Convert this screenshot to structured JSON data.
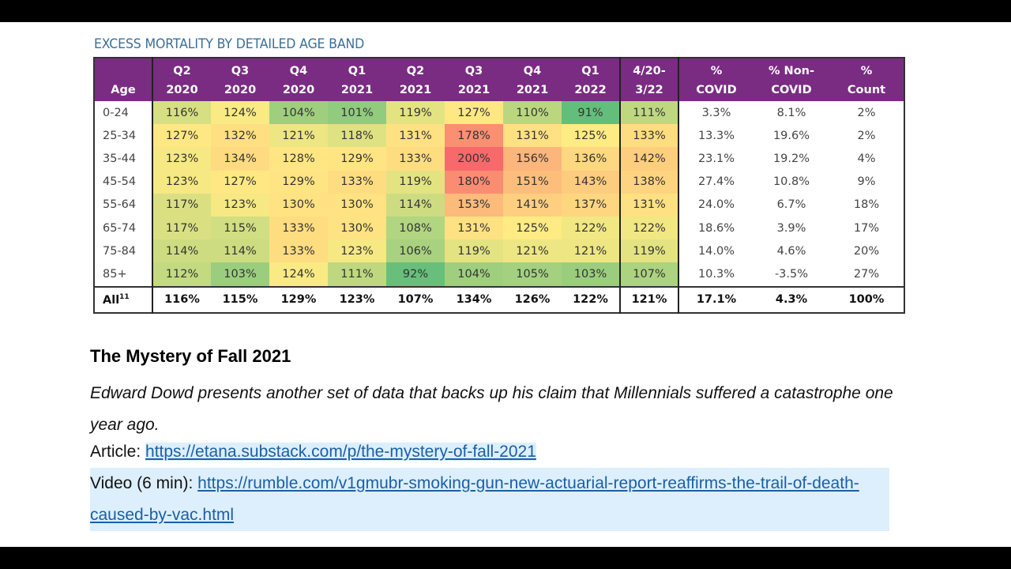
{
  "table": {
    "title": "EXCESS MORTALITY BY DETAILED AGE BAND",
    "headers": [
      [
        "",
        "Age"
      ],
      [
        "Q2",
        "2020"
      ],
      [
        "Q3",
        "2020"
      ],
      [
        "Q4",
        "2020"
      ],
      [
        "Q1",
        "2021"
      ],
      [
        "Q2",
        "2021"
      ],
      [
        "Q3",
        "2021"
      ],
      [
        "Q4",
        "2021"
      ],
      [
        "Q1",
        "2022"
      ],
      [
        "4/20-",
        "3/22"
      ],
      [
        "%",
        "COVID"
      ],
      [
        "% Non-",
        "COVID"
      ],
      [
        "%",
        "Count"
      ]
    ],
    "rows": [
      {
        "age": "0-24",
        "values": [
          116,
          124,
          104,
          101,
          119,
          127,
          110,
          91,
          111
        ],
        "covid": "3.3%",
        "non_covid": "8.1%",
        "count": "2%"
      },
      {
        "age": "25-34",
        "values": [
          127,
          132,
          121,
          118,
          131,
          178,
          131,
          125,
          133
        ],
        "covid": "13.3%",
        "non_covid": "19.6%",
        "count": "2%"
      },
      {
        "age": "35-44",
        "values": [
          123,
          134,
          128,
          129,
          133,
          200,
          156,
          136,
          142
        ],
        "covid": "23.1%",
        "non_covid": "19.2%",
        "count": "4%"
      },
      {
        "age": "45-54",
        "values": [
          123,
          127,
          129,
          133,
          119,
          180,
          151,
          143,
          138
        ],
        "covid": "27.4%",
        "non_covid": "10.8%",
        "count": "9%"
      },
      {
        "age": "55-64",
        "values": [
          117,
          123,
          130,
          130,
          114,
          153,
          141,
          137,
          131
        ],
        "covid": "24.0%",
        "non_covid": "6.7%",
        "count": "18%"
      },
      {
        "age": "65-74",
        "values": [
          117,
          115,
          133,
          130,
          108,
          131,
          125,
          122,
          122
        ],
        "covid": "18.6%",
        "non_covid": "3.9%",
        "count": "17%"
      },
      {
        "age": "75-84",
        "values": [
          114,
          114,
          133,
          123,
          106,
          119,
          121,
          121,
          119
        ],
        "covid": "14.0%",
        "non_covid": "4.6%",
        "count": "20%"
      },
      {
        "age": "85+",
        "values": [
          112,
          103,
          124,
          111,
          92,
          104,
          105,
          103,
          107
        ],
        "covid": "10.3%",
        "non_covid": "-3.5%",
        "count": "27%"
      }
    ],
    "total": {
      "age": "All",
      "footnote": "11",
      "values": [
        116,
        115,
        129,
        123,
        107,
        134,
        126,
        122,
        121
      ],
      "covid": "17.1%",
      "non_covid": "4.3%",
      "count": "100%"
    },
    "colors": {
      "header": "#7a2c83",
      "low": "#63be7b",
      "mid": "#ffeb84",
      "high": "#f8696b"
    }
  },
  "post": {
    "heading": "The Mystery of Fall 2021",
    "description": "Edward Dowd presents another set of data that backs up his claim that Millennials suffered a catastrophe one year ago.",
    "article_label": "Article: ",
    "article_url": "https://etana.substack.com/p/the-mystery-of-fall-2021",
    "video_label": "Video (6 min): ",
    "video_url": "https://rumble.com/v1gmubr-smoking-gun-new-actuarial-report-reaffirms-the-trail-of-death-caused-by-vac.html"
  }
}
